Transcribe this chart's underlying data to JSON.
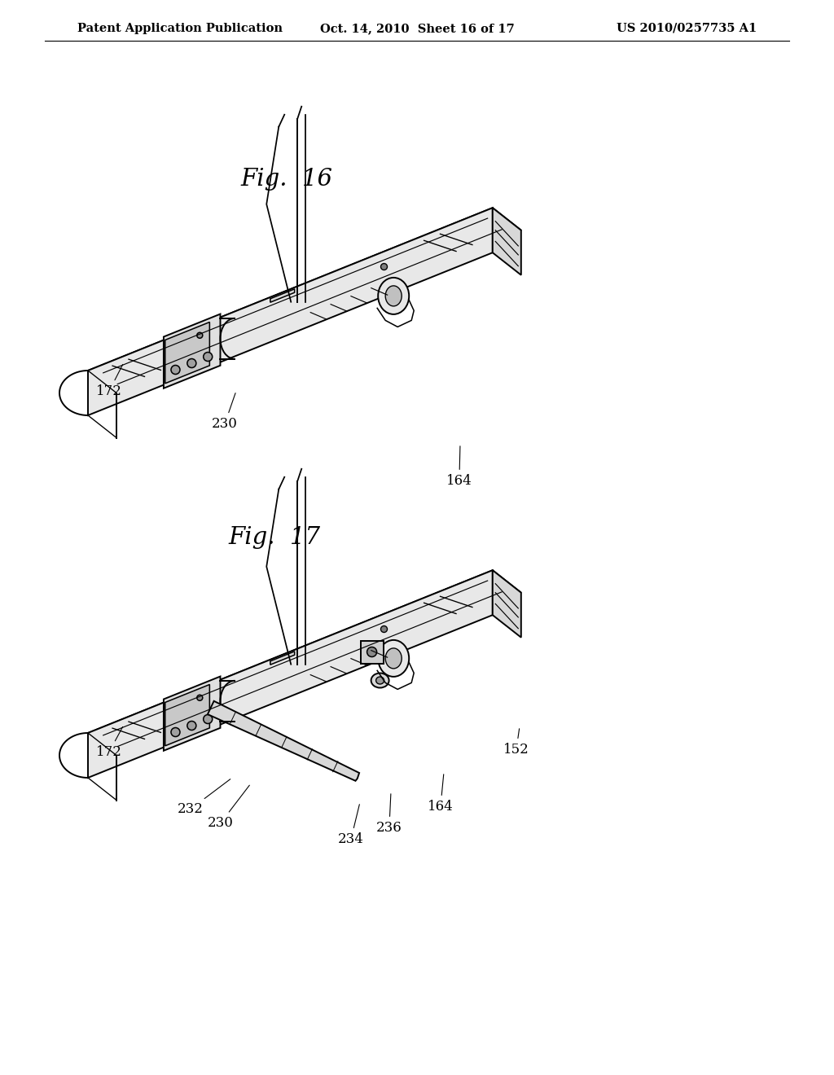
{
  "background_color": "#ffffff",
  "header_left": "Patent Application Publication",
  "header_center": "Oct. 14, 2010  Sheet 16 of 17",
  "header_right": "US 2010/0257735 A1",
  "fig16_title": "Fig.  16",
  "fig17_title": "Fig.  17",
  "line_color": "#000000",
  "line_width": 1.4,
  "label_fontsize": 12,
  "title_fontsize": 21,
  "header_fontsize": 10.5
}
